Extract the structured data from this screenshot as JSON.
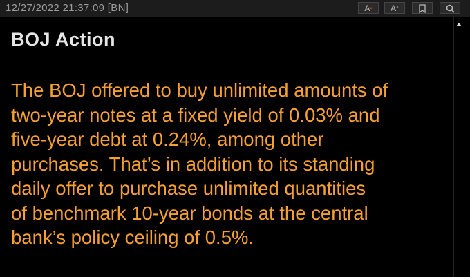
{
  "header": {
    "timestamp": "12/27/2022 21:37:09 [BN]",
    "buttons": [
      "A",
      "A"
    ]
  },
  "article": {
    "headline": "BOJ Action",
    "lines": [
      "The BOJ offered to buy unlimited amounts of",
      "two-year notes at a fixed yield of 0.03% and",
      "five-year debt at 0.24%, among other",
      "purchases. That’s in addition to its standing",
      "daily offer to purchase unlimited quantities",
      "of benchmark 10-year bonds at the central",
      "bank’s policy ceiling of 0.5%."
    ]
  }
}
